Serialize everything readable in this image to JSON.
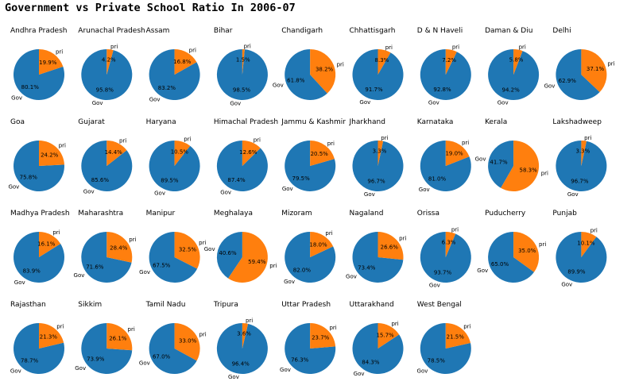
{
  "title": "Government vs Private School Ratio In 2006-07",
  "colors": {
    "gov": "#1f77b4",
    "pri": "#ff7f0e"
  },
  "chart_data": {
    "type": "pie",
    "title": "Government vs Private School Ratio In 2006-07",
    "labels": [
      "Gov",
      "pri"
    ],
    "charts": [
      {
        "state": "Andhra Pradesh",
        "gov": 80.1,
        "pri": 19.9
      },
      {
        "state": "Arunachal Pradesh",
        "gov": 95.8,
        "pri": 4.2
      },
      {
        "state": "Assam",
        "gov": 83.2,
        "pri": 16.8
      },
      {
        "state": "Bihar",
        "gov": 98.5,
        "pri": 1.5
      },
      {
        "state": "Chandigarh",
        "gov": 61.8,
        "pri": 38.2
      },
      {
        "state": "Chhattisgarh",
        "gov": 91.7,
        "pri": 8.3
      },
      {
        "state": "D & N Haveli",
        "gov": 92.8,
        "pri": 7.2
      },
      {
        "state": "Daman & Diu",
        "gov": 94.2,
        "pri": 5.8
      },
      {
        "state": "Delhi",
        "gov": 62.9,
        "pri": 37.1
      },
      {
        "state": "Goa",
        "gov": 75.8,
        "pri": 24.2
      },
      {
        "state": "Gujarat",
        "gov": 85.6,
        "pri": 14.4
      },
      {
        "state": "Haryana",
        "gov": 89.5,
        "pri": 10.5
      },
      {
        "state": "Himachal Pradesh",
        "gov": 87.4,
        "pri": 12.6
      },
      {
        "state": "Jammu & Kashmir",
        "gov": 79.5,
        "pri": 20.5
      },
      {
        "state": "Jharkhand",
        "gov": 96.7,
        "pri": 3.3
      },
      {
        "state": "Karnataka",
        "gov": 81.0,
        "pri": 19.0
      },
      {
        "state": "Kerala",
        "gov": 41.7,
        "pri": 58.3
      },
      {
        "state": "Lakshadweep",
        "gov": 96.7,
        "pri": 3.3
      },
      {
        "state": "Madhya Pradesh",
        "gov": 83.9,
        "pri": 16.1
      },
      {
        "state": "Maharashtra",
        "gov": 71.6,
        "pri": 28.4
      },
      {
        "state": "Manipur",
        "gov": 67.5,
        "pri": 32.5
      },
      {
        "state": "Meghalaya",
        "gov": 40.6,
        "pri": 59.4
      },
      {
        "state": "Mizoram",
        "gov": 82.0,
        "pri": 18.0
      },
      {
        "state": "Nagaland",
        "gov": 73.4,
        "pri": 26.6
      },
      {
        "state": "Orissa",
        "gov": 93.7,
        "pri": 6.3
      },
      {
        "state": "Puducherry",
        "gov": 65.0,
        "pri": 35.0
      },
      {
        "state": "Punjab",
        "gov": 89.9,
        "pri": 10.1
      },
      {
        "state": "Rajasthan",
        "gov": 78.7,
        "pri": 21.3
      },
      {
        "state": "Sikkim",
        "gov": 73.9,
        "pri": 26.1
      },
      {
        "state": "Tamil Nadu",
        "gov": 67.0,
        "pri": 33.0
      },
      {
        "state": "Tripura",
        "gov": 96.4,
        "pri": 3.6
      },
      {
        "state": "Uttar Pradesh",
        "gov": 76.3,
        "pri": 23.7
      },
      {
        "state": "Uttarakhand",
        "gov": 84.3,
        "pri": 15.7
      },
      {
        "state": "West Bengal",
        "gov": 78.5,
        "pri": 21.5
      }
    ]
  }
}
